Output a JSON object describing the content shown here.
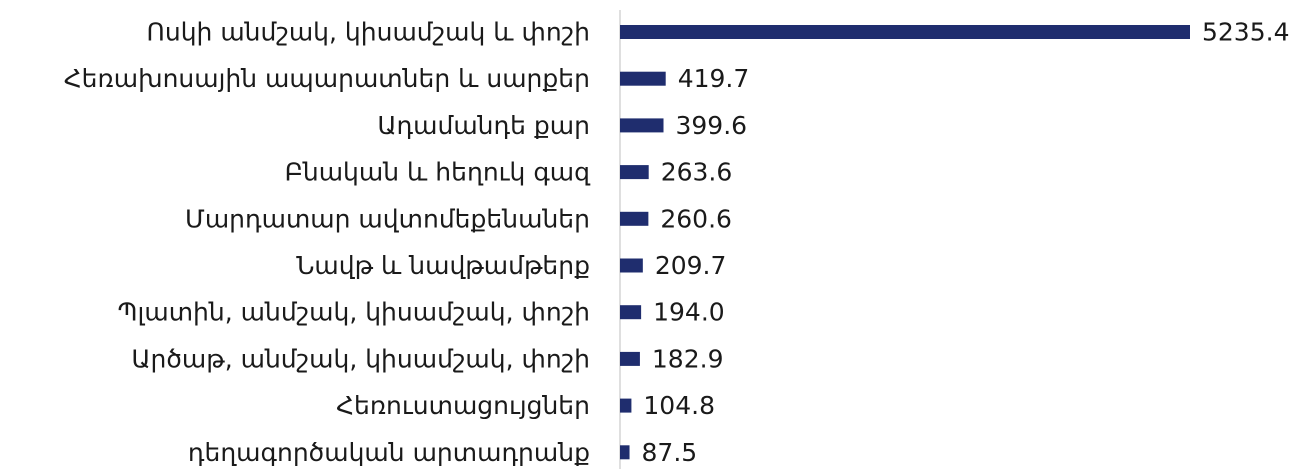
{
  "chart_data": {
    "type": "barh",
    "categories": [
      "Ոսկի անմշակ, կիսամշակ և փոշի",
      "Հեռախոսային ապարատներ և սարքեր",
      "Ադամանդե քար",
      "Բնական և հեղուկ գազ",
      "Մարդատար ավտոմեքենաներ",
      "Նավթ և նավթամթերք",
      "Պլատին, անմշակ, կիսամշակ, փոշի",
      "Արծաթ, անմշակ, կիսամշակ, փոշի",
      "Հեռուստացույցներ",
      "դեղագործական արտադրանք"
    ],
    "values": [
      5235.4,
      419.7,
      399.6,
      263.6,
      260.6,
      209.7,
      194.0,
      182.9,
      104.8,
      87.5
    ],
    "value_labels": [
      "5235.4",
      "419.7",
      "399.6",
      "263.6",
      "260.6",
      "209.7",
      "194.0",
      "182.9",
      "104.8",
      "87.5"
    ],
    "color": "#1f2d6e"
  }
}
